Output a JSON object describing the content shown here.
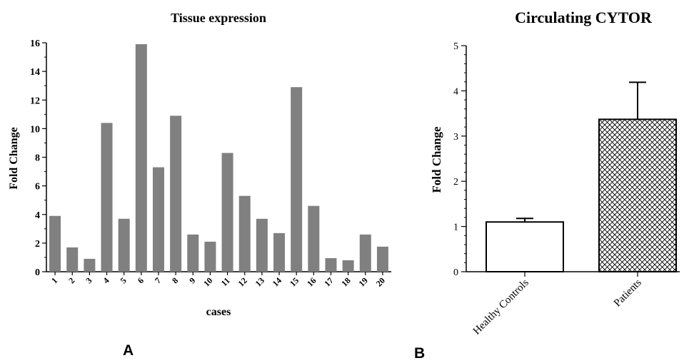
{
  "chart_data": [
    {
      "type": "bar",
      "panel_label": "A",
      "title": "Tissue expression",
      "xlabel": "cases",
      "ylabel": "Fold Change",
      "ylim": [
        0,
        16
      ],
      "yticks": [
        "0",
        "2",
        "4",
        "6",
        "8",
        "10",
        "12",
        "14",
        "16"
      ],
      "categories": [
        "1",
        "2",
        "3",
        "4",
        "5",
        "6",
        "7",
        "8",
        "9",
        "10",
        "11",
        "12",
        "13",
        "14",
        "15",
        "16",
        "17",
        "18",
        "19",
        "20"
      ],
      "values": [
        3.9,
        1.7,
        0.9,
        10.4,
        3.7,
        15.9,
        7.3,
        10.9,
        2.6,
        2.1,
        8.3,
        5.3,
        3.7,
        2.7,
        12.9,
        4.6,
        0.95,
        0.8,
        2.6,
        1.75
      ],
      "bar_color": "#808080",
      "grid": false
    },
    {
      "type": "bar",
      "panel_label": "B",
      "title": "Circulating CYTOR",
      "xlabel": "",
      "ylabel": "Fold Change",
      "ylim": [
        0,
        5
      ],
      "yticks": [
        "0",
        "1",
        "2",
        "3",
        "4",
        "5"
      ],
      "categories": [
        "Healthy Controls",
        "Patients"
      ],
      "values": [
        1.1,
        3.37
      ],
      "error_upper": [
        0.08,
        0.82
      ],
      "fills": [
        "white",
        "crosshatch"
      ],
      "grid": false
    }
  ]
}
